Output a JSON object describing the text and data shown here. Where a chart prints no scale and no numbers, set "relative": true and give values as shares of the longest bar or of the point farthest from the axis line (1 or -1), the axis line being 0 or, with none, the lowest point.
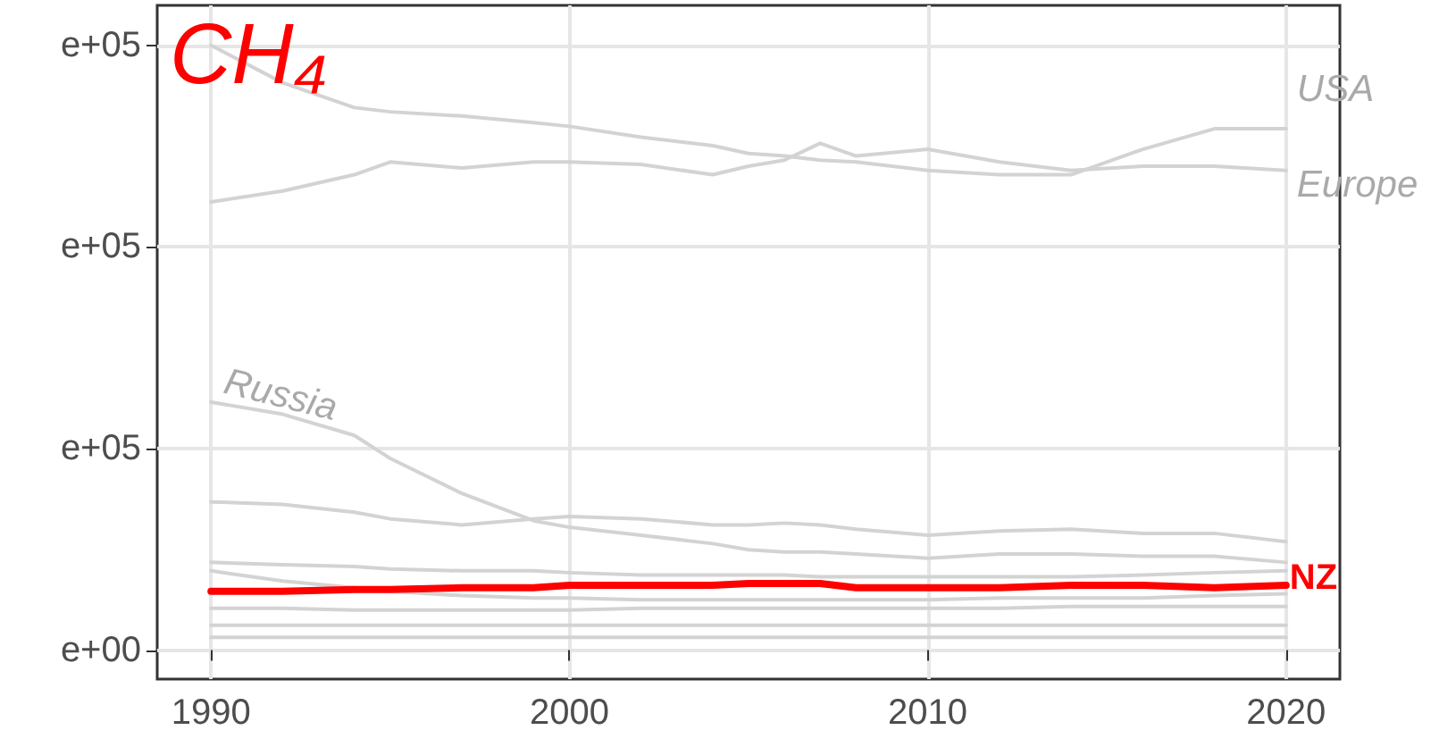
{
  "chart_data": {
    "type": "line",
    "title": "CH₄",
    "relative": true,
    "annotations": [
      "e+00",
      "e+05",
      "e+05",
      "e+05"
    ],
    "x": [
      1990,
      1992,
      1994,
      1995,
      1997,
      1999,
      2000,
      2002,
      2004,
      2005,
      2006,
      2007,
      2008,
      2010,
      2012,
      2014,
      2016,
      2018,
      2020
    ],
    "series": [
      {
        "name": "USA",
        "color": "#d3d3d3",
        "values": [
          1,
          0.938,
          0.897,
          0.89,
          0.883,
          0.872,
          0.866,
          0.848,
          0.834,
          0.821,
          0.817,
          0.81,
          0.807,
          0.793,
          0.786,
          0.786,
          0.828,
          0.862,
          0.862
        ]
      },
      {
        "name": "Europe",
        "color": "#d3d3d3",
        "values": [
          0.741,
          0.759,
          0.786,
          0.807,
          0.797,
          0.807,
          0.807,
          0.803,
          0.786,
          0.8,
          0.81,
          0.838,
          0.817,
          0.828,
          0.807,
          0.793,
          0.8,
          0.8,
          0.793
        ]
      },
      {
        "name": "Russia",
        "color": "#d3d3d3",
        "values": [
          0.41,
          0.39,
          0.355,
          0.317,
          0.259,
          0.214,
          0.203,
          0.19,
          0.176,
          0.166,
          0.162,
          0.162,
          0.159,
          0.152,
          0.159,
          0.159,
          0.155,
          0.155,
          0.145
        ]
      },
      {
        "color": "#d3d3d3",
        "values": [
          0.245,
          0.241,
          0.228,
          0.217,
          0.207,
          0.217,
          0.221,
          0.217,
          0.207,
          0.207,
          0.21,
          0.207,
          0.2,
          0.19,
          0.197,
          0.2,
          0.193,
          0.193,
          0.179
        ]
      },
      {
        "color": "#d3d3d3",
        "values": [
          0.145,
          0.141,
          0.138,
          0.134,
          0.131,
          0.131,
          0.128,
          0.124,
          0.124,
          0.124,
          0.124,
          0.121,
          0.121,
          0.121,
          0.121,
          0.121,
          0.124,
          0.128,
          0.131
        ]
      },
      {
        "color": "#d3d3d3",
        "values": [
          0.131,
          0.114,
          0.103,
          0.097,
          0.09,
          0.086,
          0.086,
          0.083,
          0.083,
          0.083,
          0.083,
          0.083,
          0.083,
          0.083,
          0.086,
          0.086,
          0.086,
          0.09,
          0.093
        ]
      },
      {
        "color": "#d3d3d3",
        "values": [
          0.069,
          0.069,
          0.066,
          0.066,
          0.066,
          0.066,
          0.066,
          0.069,
          0.069,
          0.069,
          0.069,
          0.069,
          0.069,
          0.069,
          0.069,
          0.072,
          0.072,
          0.072,
          0.072
        ]
      },
      {
        "color": "#d3d3d3",
        "values": [
          0.041,
          0.041,
          0.041,
          0.041,
          0.041,
          0.041,
          0.041,
          0.041,
          0.041,
          0.041,
          0.041,
          0.041,
          0.041,
          0.041,
          0.041,
          0.041,
          0.041,
          0.041,
          0.041
        ]
      },
      {
        "color": "#d3d3d3",
        "values": [
          0.021,
          0.021,
          0.021,
          0.021,
          0.021,
          0.021,
          0.021,
          0.021,
          0.021,
          0.021,
          0.021,
          0.021,
          0.021,
          0.021,
          0.021,
          0.021,
          0.021,
          0.021,
          0.021
        ]
      },
      {
        "name": "NZ",
        "color": "#ff0000",
        "values": [
          0.097,
          0.097,
          0.1,
          0.1,
          0.103,
          0.103,
          0.107,
          0.107,
          0.107,
          0.11,
          0.11,
          0.11,
          0.103,
          0.103,
          0.103,
          0.107,
          0.107,
          0.103,
          0.107
        ]
      }
    ],
    "xlim": [
      1988.5,
      2021.5
    ],
    "xticks": [
      1990,
      2000,
      2010,
      2020
    ],
    "grid": true,
    "legend": false,
    "marker": "none",
    "line_style": "solid"
  }
}
